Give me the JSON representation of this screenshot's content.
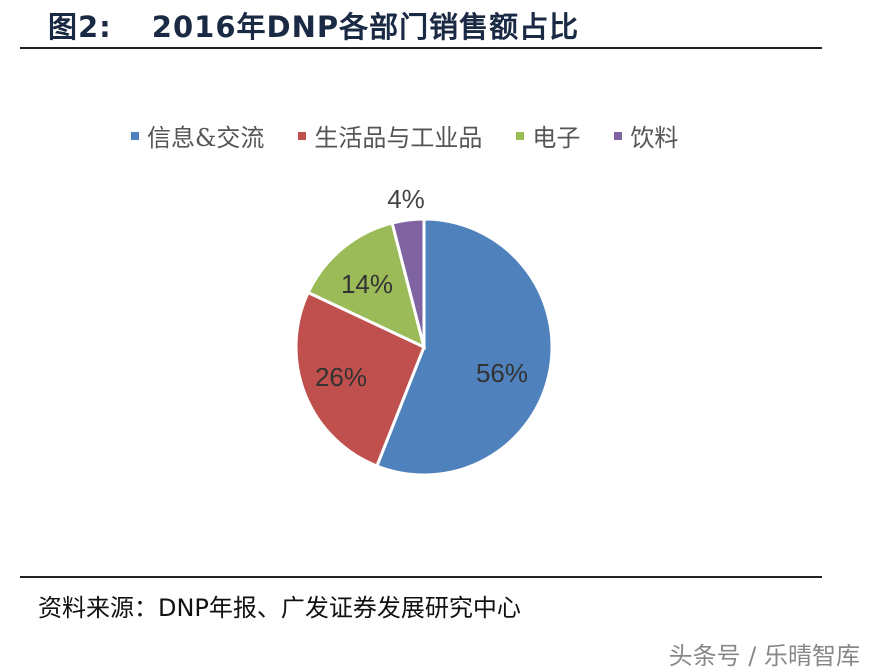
{
  "header": {
    "figure_label": "图2:",
    "title": "2016年DNP各部门销售额占比"
  },
  "footer": {
    "source": "资料来源：DNP年报、广发证券发展研究中心",
    "watermark": "头条号 / 乐晴智库"
  },
  "chart_data": {
    "type": "pie",
    "title": "2016年DNP各部门销售额占比",
    "categories": [
      "信息&交流",
      "生活品与工业品",
      "电子",
      "饮料"
    ],
    "values": [
      56,
      26,
      14,
      4
    ],
    "labels": [
      "56%",
      "26%",
      "14%",
      "4%"
    ],
    "colors": [
      "#4f81bd",
      "#c0504d",
      "#9bbb59",
      "#8064a2"
    ],
    "legend_position": "top",
    "start_angle": "12 o'clock, clockwise"
  },
  "legend": {
    "items": [
      {
        "label": "信息&交流",
        "color": "#4f81bd"
      },
      {
        "label": "生活品与工业品",
        "color": "#c0504d"
      },
      {
        "label": "电子",
        "color": "#9bbb59"
      },
      {
        "label": "饮料",
        "color": "#8064a2"
      }
    ]
  },
  "slices": [
    {
      "label": "56%"
    },
    {
      "label": "26%"
    },
    {
      "label": "14%"
    },
    {
      "label": "4%"
    }
  ]
}
